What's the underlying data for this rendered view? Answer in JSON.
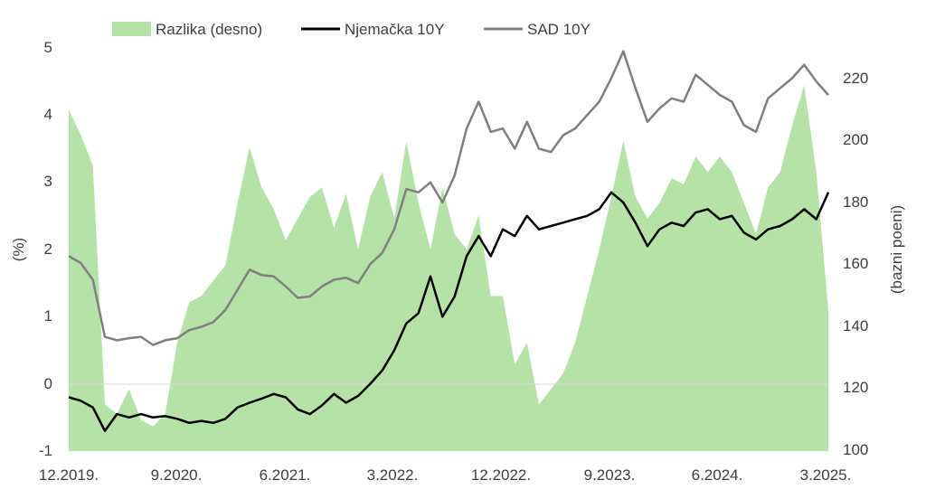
{
  "chart_data": {
    "type": "line",
    "legend": {
      "position": "top",
      "entries": [
        {
          "label": "Razlika (desno)",
          "kind": "area",
          "color": "#b5e2a6"
        },
        {
          "label": "Njemačka 10Y",
          "kind": "line",
          "color": "#000000"
        },
        {
          "label": "SAD 10Y",
          "kind": "line",
          "color": "#808080"
        }
      ]
    },
    "left_axis": {
      "title": "(%)",
      "range": [
        -1,
        5
      ],
      "ticks": [
        "5",
        "4",
        "3",
        "2",
        "1",
        "0",
        "-1"
      ]
    },
    "right_axis": {
      "title": "(bazni poeni)",
      "range": [
        100,
        230
      ],
      "ticks": [
        "220",
        "200",
        "180",
        "160",
        "140",
        "120",
        "100"
      ]
    },
    "x_axis": {
      "range": [
        "2019-12",
        "2025-03"
      ],
      "tick_labels": [
        "12.2019.",
        "9.2020.",
        "6.2021.",
        "3.2022.",
        "12.2022.",
        "9.2023.",
        "6.2024.",
        "3.2025."
      ]
    },
    "grid": false,
    "zero_line": true,
    "series": [
      {
        "name": "Njemačka 10Y",
        "axis": "left",
        "color": "#000000",
        "x": [
          "2019-12",
          "2020-01",
          "2020-02",
          "2020-03",
          "2020-04",
          "2020-05",
          "2020-06",
          "2020-07",
          "2020-08",
          "2020-09",
          "2020-10",
          "2020-11",
          "2020-12",
          "2021-01",
          "2021-02",
          "2021-03",
          "2021-04",
          "2021-05",
          "2021-06",
          "2021-07",
          "2021-08",
          "2021-09",
          "2021-10",
          "2021-11",
          "2021-12",
          "2022-01",
          "2022-02",
          "2022-03",
          "2022-04",
          "2022-05",
          "2022-06",
          "2022-07",
          "2022-08",
          "2022-09",
          "2022-10",
          "2022-11",
          "2022-12",
          "2023-01",
          "2023-02",
          "2023-03",
          "2023-04",
          "2023-05",
          "2023-06",
          "2023-07",
          "2023-08",
          "2023-09",
          "2023-10",
          "2023-11",
          "2023-12",
          "2024-01",
          "2024-02",
          "2024-03",
          "2024-04",
          "2024-05",
          "2024-06",
          "2024-07",
          "2024-08",
          "2024-09",
          "2024-10",
          "2024-11",
          "2024-12",
          "2025-01",
          "2025-02",
          "2025-03"
        ],
        "values": [
          -0.2,
          -0.25,
          -0.35,
          -0.7,
          -0.45,
          -0.5,
          -0.45,
          -0.5,
          -0.48,
          -0.52,
          -0.58,
          -0.55,
          -0.58,
          -0.52,
          -0.35,
          -0.28,
          -0.22,
          -0.15,
          -0.2,
          -0.38,
          -0.45,
          -0.32,
          -0.15,
          -0.28,
          -0.18,
          0.0,
          0.2,
          0.5,
          0.9,
          1.05,
          1.6,
          1.0,
          1.3,
          1.9,
          2.2,
          1.9,
          2.3,
          2.2,
          2.5,
          2.3,
          2.35,
          2.4,
          2.45,
          2.5,
          2.6,
          2.85,
          2.7,
          2.4,
          2.05,
          2.3,
          2.4,
          2.35,
          2.55,
          2.6,
          2.45,
          2.5,
          2.25,
          2.15,
          2.3,
          2.35,
          2.45,
          2.6,
          2.45,
          2.85
        ]
      },
      {
        "name": "SAD 10Y",
        "axis": "left",
        "color": "#808080",
        "x": [
          "2019-12",
          "2020-01",
          "2020-02",
          "2020-03",
          "2020-04",
          "2020-05",
          "2020-06",
          "2020-07",
          "2020-08",
          "2020-09",
          "2020-10",
          "2020-11",
          "2020-12",
          "2021-01",
          "2021-02",
          "2021-03",
          "2021-04",
          "2021-05",
          "2021-06",
          "2021-07",
          "2021-08",
          "2021-09",
          "2021-10",
          "2021-11",
          "2021-12",
          "2022-01",
          "2022-02",
          "2022-03",
          "2022-04",
          "2022-05",
          "2022-06",
          "2022-07",
          "2022-08",
          "2022-09",
          "2022-10",
          "2022-11",
          "2022-12",
          "2023-01",
          "2023-02",
          "2023-03",
          "2023-04",
          "2023-05",
          "2023-06",
          "2023-07",
          "2023-08",
          "2023-09",
          "2023-10",
          "2023-11",
          "2023-12",
          "2024-01",
          "2024-02",
          "2024-03",
          "2024-04",
          "2024-05",
          "2024-06",
          "2024-07",
          "2024-08",
          "2024-09",
          "2024-10",
          "2024-11",
          "2024-12",
          "2025-01",
          "2025-02",
          "2025-03"
        ],
        "values": [
          1.9,
          1.8,
          1.55,
          0.7,
          0.65,
          0.68,
          0.7,
          0.58,
          0.65,
          0.68,
          0.8,
          0.85,
          0.92,
          1.1,
          1.4,
          1.7,
          1.62,
          1.6,
          1.45,
          1.28,
          1.3,
          1.45,
          1.55,
          1.58,
          1.5,
          1.78,
          1.95,
          2.3,
          2.9,
          2.85,
          3.0,
          2.7,
          3.1,
          3.8,
          4.2,
          3.75,
          3.8,
          3.5,
          3.9,
          3.5,
          3.45,
          3.7,
          3.8,
          4.0,
          4.2,
          4.55,
          4.95,
          4.4,
          3.9,
          4.1,
          4.25,
          4.2,
          4.6,
          4.45,
          4.3,
          4.2,
          3.85,
          3.75,
          4.25,
          4.4,
          4.55,
          4.75,
          4.5,
          4.3
        ]
      },
      {
        "name": "Razlika (desno)",
        "axis": "right",
        "color": "#b5e2a6",
        "x": [
          "2019-12",
          "2020-01",
          "2020-02",
          "2020-03",
          "2020-04",
          "2020-05",
          "2020-06",
          "2020-07",
          "2020-08",
          "2020-09",
          "2020-10",
          "2020-11",
          "2020-12",
          "2021-01",
          "2021-02",
          "2021-03",
          "2021-04",
          "2021-05",
          "2021-06",
          "2021-07",
          "2021-08",
          "2021-09",
          "2021-10",
          "2021-11",
          "2021-12",
          "2022-01",
          "2022-02",
          "2022-03",
          "2022-04",
          "2022-05",
          "2022-06",
          "2022-07",
          "2022-08",
          "2022-09",
          "2022-10",
          "2022-11",
          "2022-12",
          "2023-01",
          "2023-02",
          "2023-03",
          "2023-04",
          "2023-05",
          "2023-06",
          "2023-07",
          "2023-08",
          "2023-09",
          "2023-10",
          "2023-11",
          "2023-12",
          "2024-01",
          "2024-02",
          "2024-03",
          "2024-04",
          "2024-05",
          "2024-06",
          "2024-07",
          "2024-08",
          "2024-09",
          "2024-10",
          "2024-11",
          "2024-12",
          "2025-01",
          "2025-02",
          "2025-03"
        ],
        "values": [
          210,
          202,
          192,
          115,
          112,
          120,
          110,
          108,
          112,
          135,
          148,
          150,
          155,
          160,
          180,
          198,
          185,
          178,
          168,
          175,
          182,
          185,
          172,
          183,
          165,
          182,
          190,
          175,
          200,
          180,
          165,
          185,
          170,
          165,
          176,
          150,
          150,
          128,
          135,
          115,
          120,
          125,
          135,
          150,
          165,
          182,
          200,
          182,
          175,
          180,
          188,
          186,
          195,
          190,
          195,
          190,
          180,
          170,
          185,
          190,
          205,
          218,
          190,
          145
        ]
      }
    ]
  }
}
